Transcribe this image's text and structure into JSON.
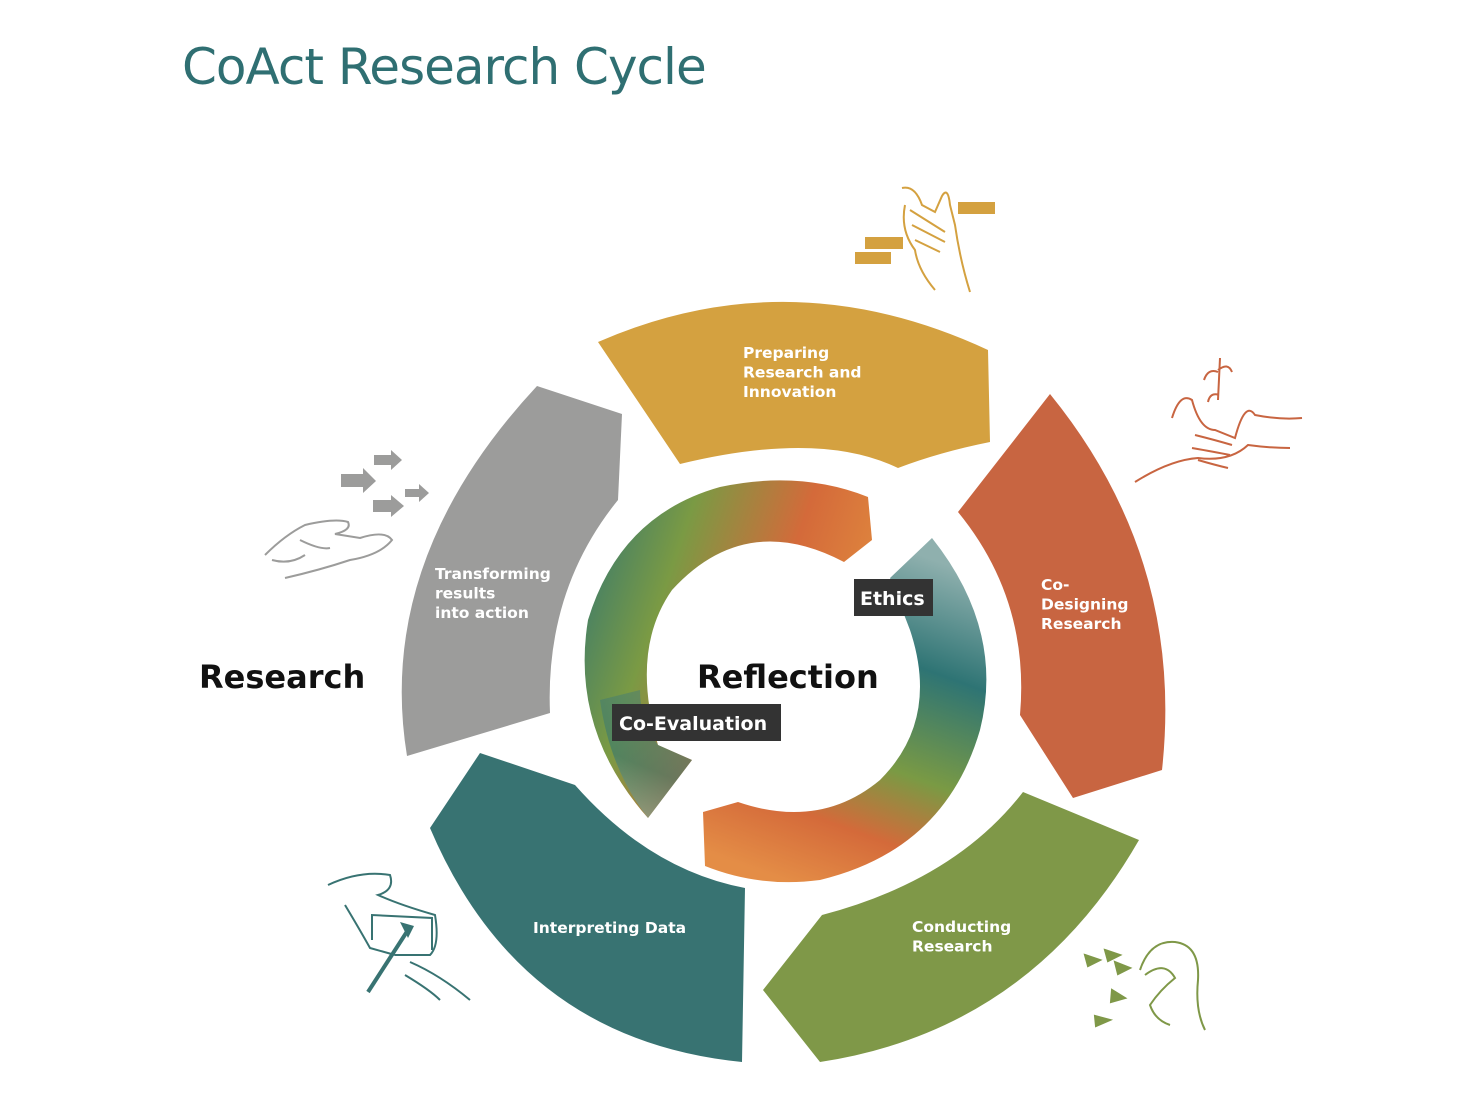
{
  "title": "CoAct Research Cycle",
  "center_label": "Reflection",
  "side_label": "Research",
  "stages": [
    {
      "id": "preparing",
      "lines": [
        "Preparing",
        "Research and",
        "Innovation"
      ],
      "color": "#d4a140"
    },
    {
      "id": "co-designing",
      "lines": [
        "Co-",
        "Designing",
        "Research"
      ],
      "color": "#c86541"
    },
    {
      "id": "conducting",
      "lines": [
        "Conducting",
        "Research"
      ],
      "color": "#7f9848"
    },
    {
      "id": "interpreting",
      "lines": [
        "Interpreting Data"
      ],
      "color": "#387372"
    },
    {
      "id": "transforming",
      "lines": [
        "Transforming",
        "results",
        "into action"
      ],
      "color": "#9c9c9b"
    }
  ],
  "tags": {
    "ethics": "Ethics",
    "co_evaluation": "Co-Evaluation"
  },
  "colors": {
    "title": "#2f6f72",
    "tag_bg": "#333333",
    "inner_teal": "#2e7474",
    "inner_green": "#7a9a44",
    "inner_orange": "#d46a3a"
  },
  "icons": [
    "speech-hand-icon",
    "plant-hands-icon",
    "pinch-hand-icon",
    "frame-hands-icon",
    "open-hand-arrows-icon"
  ]
}
